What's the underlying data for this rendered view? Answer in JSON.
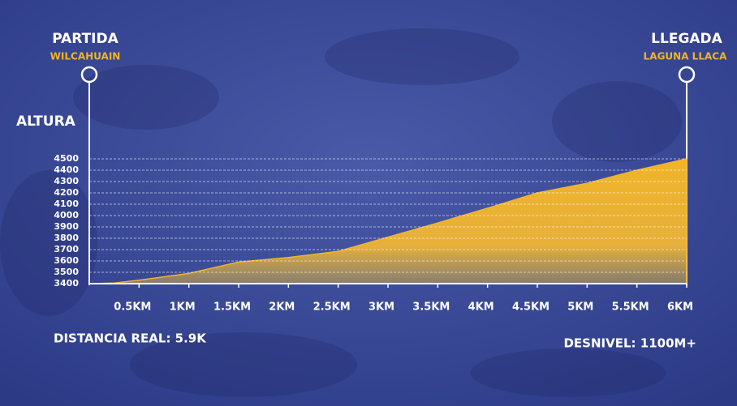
{
  "chart_data": {
    "type": "area",
    "start": {
      "label": "PARTIDA",
      "place": "WILCAHUAIN"
    },
    "end": {
      "label": "LLEGADA",
      "place": "LAGUNA LLACA"
    },
    "ylabel": "ALTURA",
    "notes": [
      "DISTANCIA REAL: 5.9K",
      "DESNIVEL: 1100M+"
    ],
    "color": "#f0b429",
    "x": [
      0,
      0.25,
      0.5,
      1.0,
      1.5,
      2.0,
      2.5,
      3.0,
      3.5,
      4.0,
      4.5,
      5.0,
      5.5,
      6.0
    ],
    "values": [
      3400,
      3405,
      3430,
      3490,
      3590,
      3630,
      3685,
      3810,
      3935,
      4065,
      4200,
      4285,
      4400,
      4500
    ],
    "xlim": [
      0,
      6
    ],
    "xticks": [
      {
        "value": 0.5,
        "label": "0.5KM"
      },
      {
        "value": 1,
        "label": "1KM"
      },
      {
        "value": 1.5,
        "label": "1.5KM"
      },
      {
        "value": 2,
        "label": "2KM"
      },
      {
        "value": 2.5,
        "label": "2.5KM"
      },
      {
        "value": 3,
        "label": "3KM"
      },
      {
        "value": 3.5,
        "label": "3.5KM"
      },
      {
        "value": 4,
        "label": "4KM"
      },
      {
        "value": 4.5,
        "label": "4.5KM"
      },
      {
        "value": 5,
        "label": "5KM"
      },
      {
        "value": 5.5,
        "label": "5.5KM"
      },
      {
        "value": 6,
        "label": "6KM"
      }
    ],
    "ylim": [
      3400,
      4500
    ],
    "yticks": [
      3400,
      3500,
      3600,
      3700,
      3800,
      3900,
      4000,
      4100,
      4200,
      4300,
      4400,
      4500
    ],
    "grid": true
  }
}
